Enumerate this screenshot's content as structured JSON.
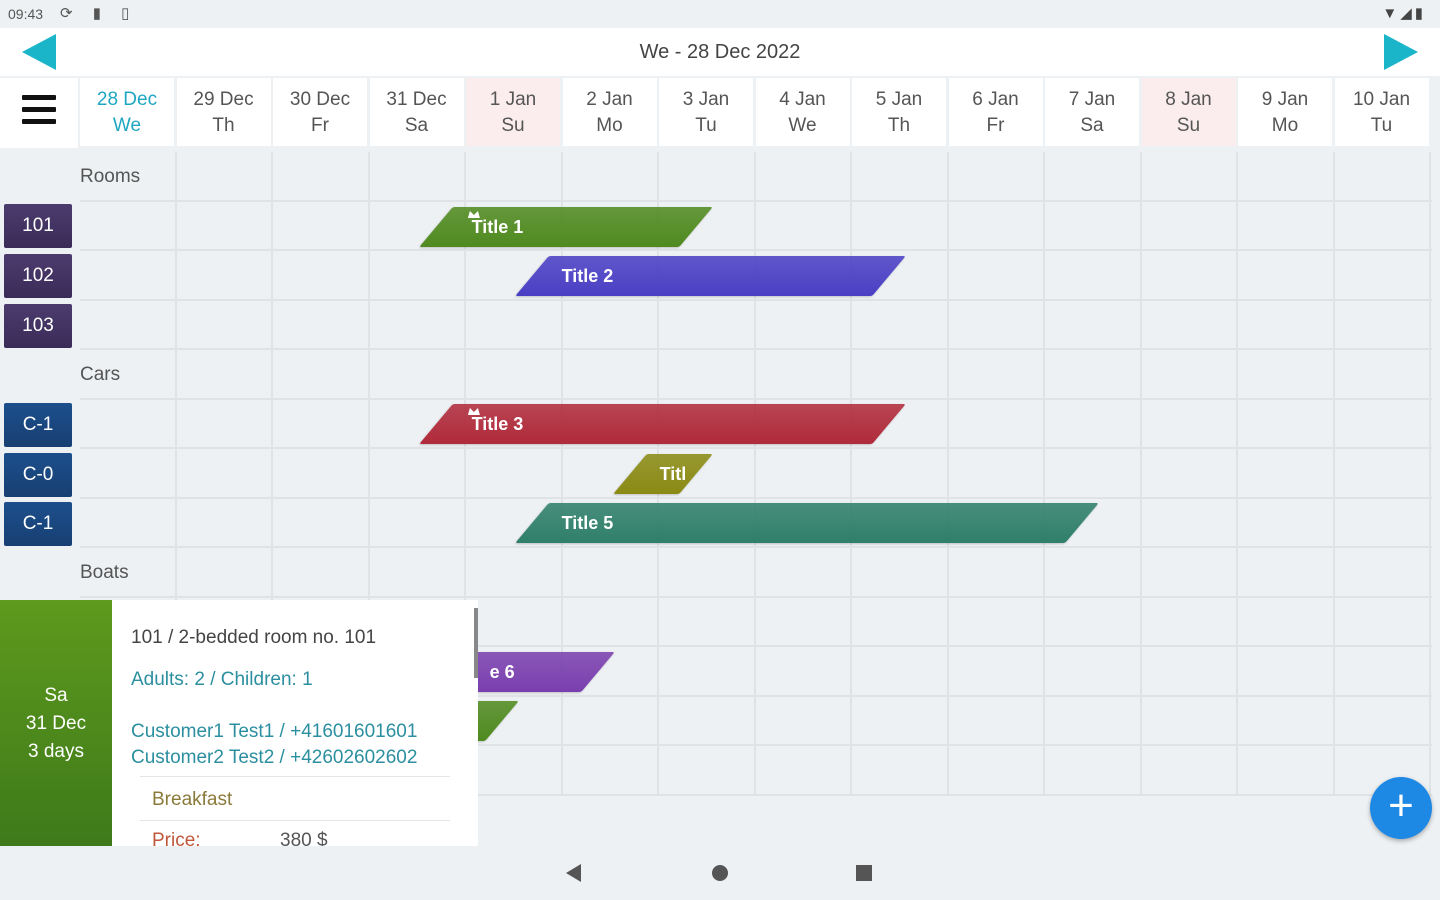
{
  "status_bar": {
    "time": "09:43",
    "icons": [
      "sync-icon",
      "sim-icon",
      "storage-icon"
    ],
    "right_icons": [
      "wifi-icon",
      "signal-icon",
      "battery-icon"
    ]
  },
  "header": {
    "title": "We - 28 Dec 2022"
  },
  "days": [
    {
      "date": "28 Dec",
      "dow": "We",
      "today": true,
      "sunday": false
    },
    {
      "date": "29 Dec",
      "dow": "Th",
      "today": false,
      "sunday": false
    },
    {
      "date": "30 Dec",
      "dow": "Fr",
      "today": false,
      "sunday": false
    },
    {
      "date": "31 Dec",
      "dow": "Sa",
      "today": false,
      "sunday": false
    },
    {
      "date": "1 Jan",
      "dow": "Su",
      "today": false,
      "sunday": true
    },
    {
      "date": "2 Jan",
      "dow": "Mo",
      "today": false,
      "sunday": false
    },
    {
      "date": "3 Jan",
      "dow": "Tu",
      "today": false,
      "sunday": false
    },
    {
      "date": "4 Jan",
      "dow": "We",
      "today": false,
      "sunday": false
    },
    {
      "date": "5 Jan",
      "dow": "Th",
      "today": false,
      "sunday": false
    },
    {
      "date": "6 Jan",
      "dow": "Fr",
      "today": false,
      "sunday": false
    },
    {
      "date": "7 Jan",
      "dow": "Sa",
      "today": false,
      "sunday": false
    },
    {
      "date": "8 Jan",
      "dow": "Su",
      "today": false,
      "sunday": true
    },
    {
      "date": "9 Jan",
      "dow": "Mo",
      "today": false,
      "sunday": false
    },
    {
      "date": "10 Jan",
      "dow": "Tu",
      "today": false,
      "sunday": false
    }
  ],
  "groups": {
    "rooms": "Rooms",
    "cars": "Cars",
    "boats": "Boats"
  },
  "resources": {
    "rooms": [
      "101",
      "102",
      "103"
    ],
    "cars": [
      "C-1",
      "C-0",
      "C-1"
    ]
  },
  "bookings": [
    {
      "title": "Title 1",
      "color": "#4f8a1f",
      "flag": true
    },
    {
      "title": "Title 2",
      "color": "#4a3fc4",
      "flag": false
    },
    {
      "title": "Title 3",
      "color": "#b02a3a",
      "flag": true
    },
    {
      "title": "Titl",
      "color": "#8a8a14",
      "flag": false
    },
    {
      "title": "Title 5",
      "color": "#2f7f6a",
      "flag": false
    },
    {
      "title": "e 6",
      "color": "#7a3fae",
      "flag": false
    },
    {
      "title": "",
      "color": "#4f8a1f",
      "flag": false
    }
  ],
  "popup": {
    "day": "Sa",
    "date": "31 Dec",
    "duration": "3 days",
    "room_line": "101  /  2-bedded room no. 101",
    "guests_line": "Adults: 2  /  Children: 1",
    "customer1": "Customer1 Test1 / +41601601601",
    "customer2": "Customer2 Test2 / +42602602602",
    "extra": "Breakfast",
    "price_label": "Price:",
    "price_value": "380  $"
  },
  "fab": {
    "label": "+"
  },
  "colors": {
    "accent": "#1ab5c9",
    "fab": "#1e88e5",
    "room": "#3f3160",
    "car": "#1a4680"
  }
}
